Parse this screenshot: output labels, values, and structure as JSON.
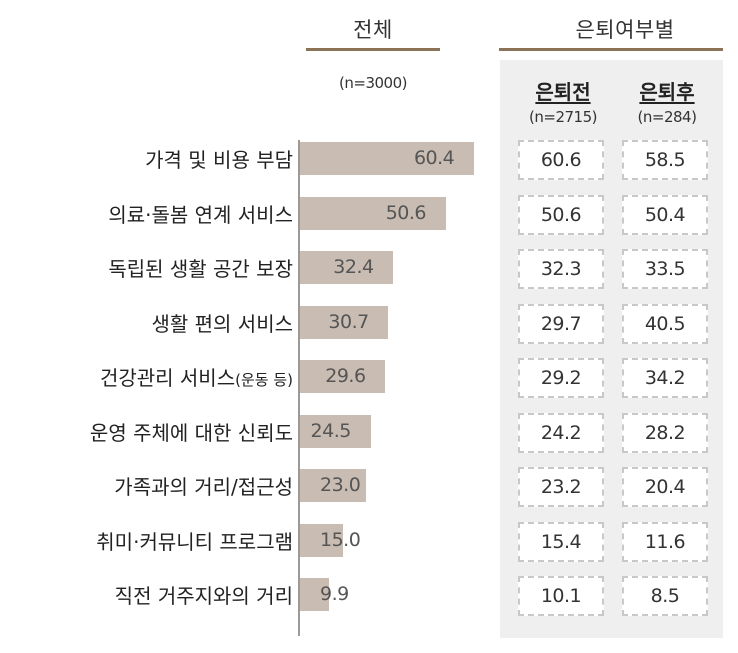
{
  "headers": {
    "total": "전체",
    "total_n": "(n=3000)",
    "by_retirement": "은퇴여부별",
    "before": "은퇴전",
    "before_n": "(n=2715)",
    "after": "은퇴후",
    "after_n": "(n=284)"
  },
  "chart_data": {
    "type": "bar",
    "orientation": "horizontal",
    "categories": [
      "가격 및 비용 부담",
      "의료·돌봄 연계 서비스",
      "독립된 생활 공간 보장",
      "생활 편의 서비스",
      "건강관리 서비스(운동 등)",
      "운영 주체에 대한 신뢰도",
      "가족과의 거리/접근성",
      "취미·커뮤니티 프로그램",
      "직전 거주지와의 거리"
    ],
    "values": [
      "60.4",
      "50.6",
      "32.4",
      "30.7",
      "29.6",
      "24.5",
      "23.0",
      "15.0",
      "9.9"
    ],
    "xlim": [
      0,
      100
    ],
    "table": {
      "before": [
        "60.6",
        "50.6",
        "32.3",
        "29.7",
        "29.2",
        "24.2",
        "23.2",
        "15.4",
        "10.1"
      ],
      "after": [
        "58.5",
        "50.4",
        "33.5",
        "40.5",
        "34.2",
        "28.2",
        "20.4",
        "11.6",
        "8.5"
      ]
    },
    "colors": {
      "bar": "#c9bcb2",
      "header_line": "#8a7356",
      "panel": "#efefef"
    }
  }
}
